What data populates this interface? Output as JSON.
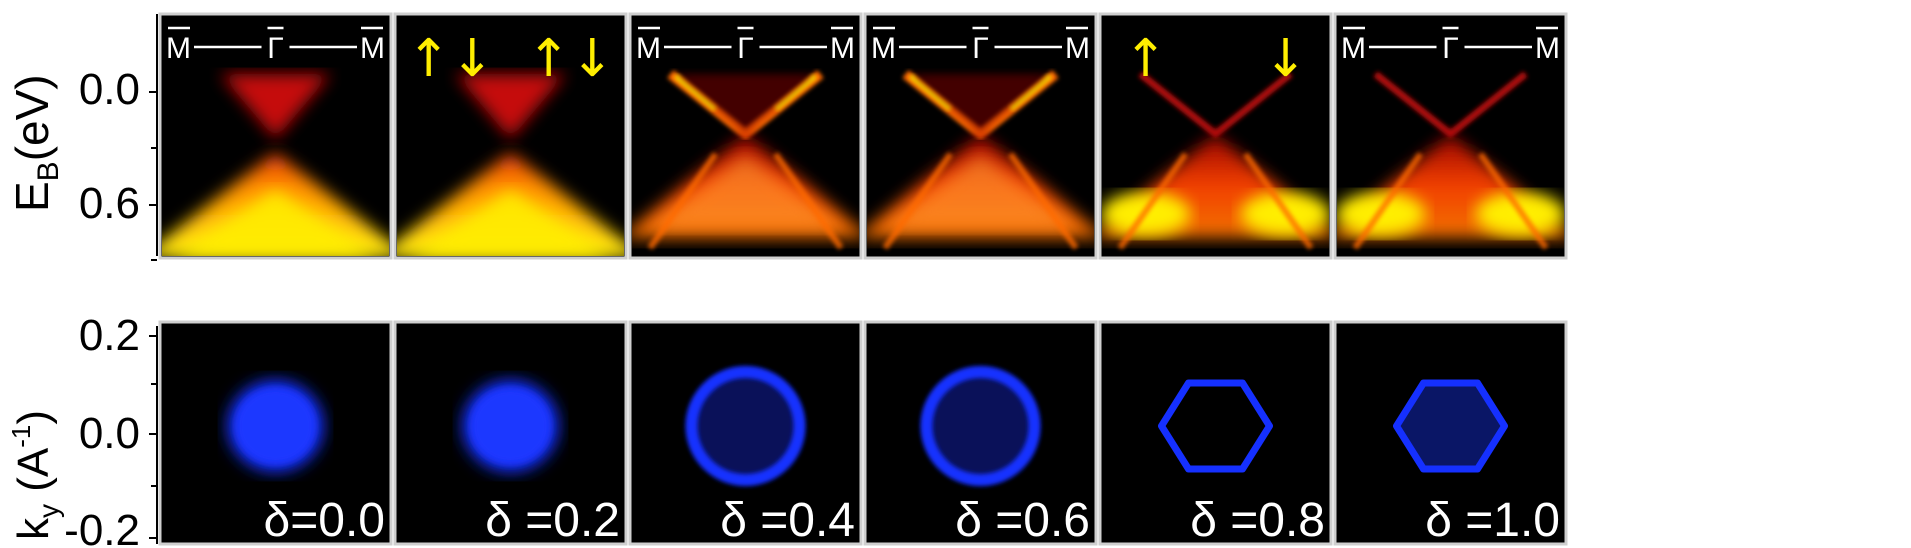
{
  "figure": {
    "top_axis": {
      "label_main": "E",
      "label_sub": "B",
      "label_unit": "(eV)",
      "ticks": [
        "0.0",
        "0.6"
      ]
    },
    "bottom_axis": {
      "label_main": "k",
      "label_sub": "y",
      "label_unit_open": " (A",
      "label_unit_sup": "-1",
      "label_unit_close": ")",
      "ticks": [
        "0.2",
        "0.0",
        "-0.2"
      ]
    },
    "kpath": {
      "left": "M",
      "center": "Γ",
      "right": "M"
    },
    "spin": {
      "pair": "↑↓",
      "up": "↑",
      "down": "↓"
    },
    "panels": [
      {
        "label": "δ=0.0",
        "top_header": "kpath",
        "shape": "disk-filled"
      },
      {
        "label": "δ =0.2",
        "top_header": "spin-pair",
        "shape": "disk-filled"
      },
      {
        "label": "δ =0.4",
        "top_header": "kpath",
        "shape": "ring-circle"
      },
      {
        "label": "δ =0.6",
        "top_header": "kpath",
        "shape": "ring-circle"
      },
      {
        "label": "δ =0.8",
        "top_header": "spin-split",
        "shape": "hexagon"
      },
      {
        "label": "δ =1.0",
        "top_header": "kpath",
        "shape": "hexagon-filled"
      }
    ],
    "colors": {
      "band_dark": "#000000",
      "band_red": "#d01010",
      "band_orange": "#ff6a00",
      "band_yellow": "#ffee00",
      "fermi_blue": "#1530ff",
      "spin_arrow": "#ffee00",
      "panel_border": "#cfcfcf"
    }
  }
}
